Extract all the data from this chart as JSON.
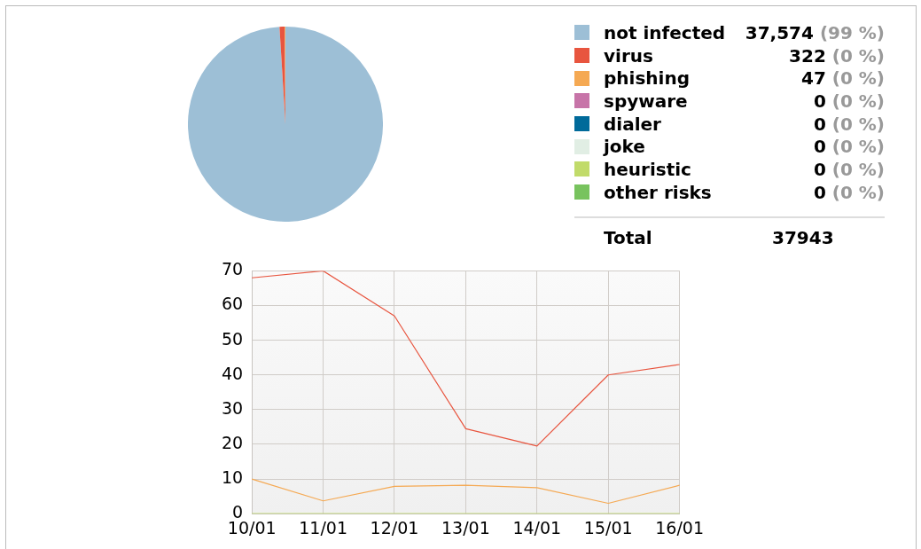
{
  "chart_data": [
    {
      "type": "pie",
      "categories": [
        "not infected",
        "virus",
        "phishing",
        "spyware",
        "dialer",
        "joke",
        "heuristic",
        "other risks"
      ],
      "values": [
        37574,
        322,
        47,
        0,
        0,
        0,
        0,
        0
      ],
      "colors": [
        "#9dbfd6",
        "#e8553f",
        "#f5a953",
        "#c774a8",
        "#006a9a",
        "#e1eee4",
        "#c1db6a",
        "#78c35e"
      ],
      "value_labels": [
        "37,574 (99 %)",
        "322 (0 %)",
        "47 (0 %)",
        "0 (0 %)",
        "0 (0 %)",
        "0 (0 %)",
        "0 (0 %)",
        "0 (0 %)"
      ],
      "legend": "right",
      "annotations": [
        "Total",
        "37943"
      ]
    },
    {
      "type": "line",
      "categories": [
        "10/01",
        "11/01",
        "12/01",
        "13/01",
        "14/01",
        "15/01",
        "16/01"
      ],
      "series": [
        {
          "color": "#e8553f",
          "values": [
            68,
            70,
            57,
            24.5,
            19.5,
            40,
            43
          ]
        },
        {
          "color": "#f5a953",
          "values": [
            10,
            3.7,
            7.9,
            8.2,
            7.5,
            3,
            8.2
          ]
        },
        {
          "color": "#c1db6a",
          "values": [
            0,
            0,
            0,
            0,
            0,
            0,
            0
          ]
        }
      ],
      "ylim": [
        0,
        70
      ],
      "yticks": [
        0,
        10,
        20,
        30,
        40,
        50,
        60,
        70
      ],
      "grid": true,
      "marker": "none",
      "line_style": "solid"
    }
  ]
}
